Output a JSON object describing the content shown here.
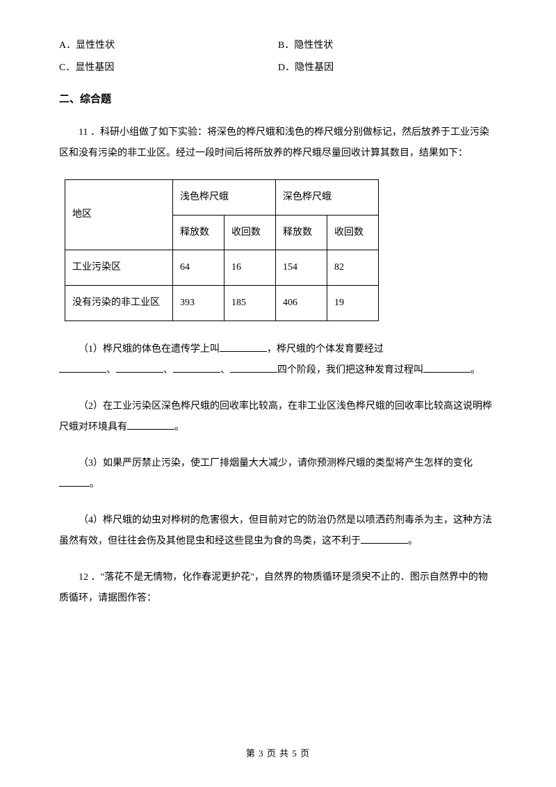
{
  "mc": {
    "optA": "A．显性性状",
    "optB": "B．隐性性状",
    "optC": "C．显性基因",
    "optD": "D．隐性基因"
  },
  "section2": "二、综合题",
  "q11": {
    "num": "11 ．",
    "stem": "科研小组做了如下实验：将深色的桦尺蛾和浅色的桦尺蛾分别做标记，然后放养于工业污染区和没有污染的非工业区。经过一段时间后将所放养的桦尺蛾尽量回收计算其数目，结果如下：",
    "table": {
      "h_region": "地区",
      "h_light": "浅色桦尺蛾",
      "h_dark": "深色桦尺蛾",
      "h_rel": "释放数",
      "h_rec": "收回数",
      "r1": {
        "region": "工业污染区",
        "v1": "64",
        "v2": "16",
        "v3": "154",
        "v4": "82"
      },
      "r2": {
        "region": "没有污染的非工业区",
        "v1": "393",
        "v2": "185",
        "v3": "406",
        "v4": "19"
      }
    },
    "p1a": "（1）桦尺蛾的体色在遗传学上叫",
    "p1b": "，桦尺蛾的个体发育要经过",
    "p1c": "、",
    "p1d": "四个阶段，我们把这种发育过程叫",
    "p1e": "。",
    "p2a": "（2）在工业污染区深色桦尺蛾的回收率比较高，在非工业区浅色桦尺蛾的回收率比较高这说明桦尺蛾对环境具有",
    "p2b": "。",
    "p3a": "（3）如果严厉禁止污染，使工厂排烟量大大减少，请你预测桦尺蛾的类型将产生怎样的变化",
    "p3b": "。",
    "p4a": "（4）桦尺蛾的幼虫对桦树的危害很大，但目前对它的防治仍然是以喷洒药剂毒杀为主，这种方法虽然有效，但往往会伤及其他昆虫和经这些昆虫为食的鸟类，这不利于",
    "p4b": "。"
  },
  "q12": {
    "num": "12 ．",
    "stem": "\"落花不是无情物，化作春泥更护花\"，自然界的物质循环是须臾不止的．图示自然界中的物质循环，请据图作答："
  },
  "footer_a": "第 ",
  "footer_b": "3",
  "footer_c": " 页 共 ",
  "footer_d": "5",
  "footer_e": " 页"
}
